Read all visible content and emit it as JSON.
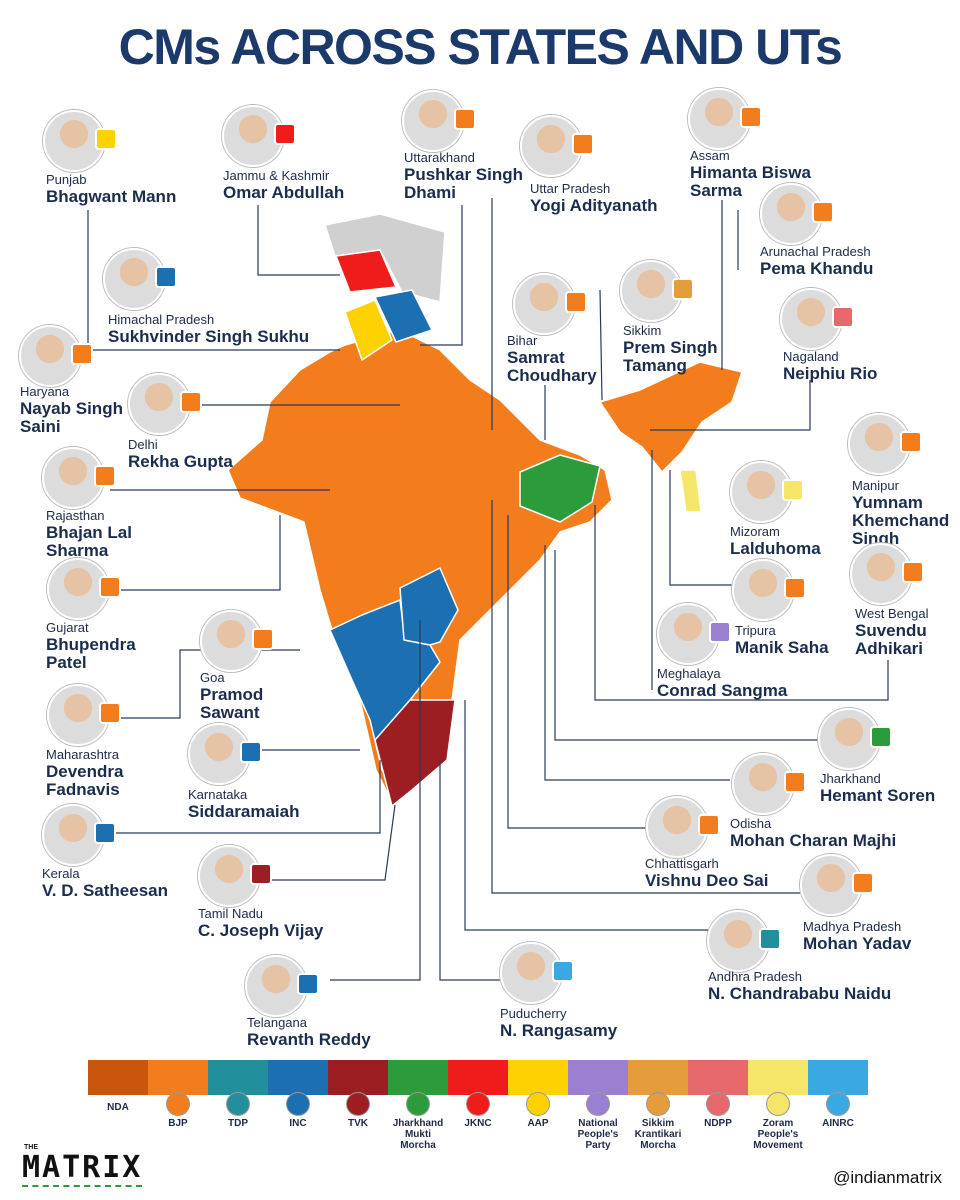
{
  "title": "CMs ACROSS STATES AND UTs",
  "cms": [
    {
      "state": "Punjab",
      "name": "Bhagwant Mann",
      "party": "AAP"
    },
    {
      "state": "Jammu & Kashmir",
      "name": "Omar Abdullah",
      "party": "JKNC"
    },
    {
      "state": "Uttarakhand",
      "name": "Pushkar Singh Dhami",
      "party": "BJP"
    },
    {
      "state": "Uttar Pradesh",
      "name": "Yogi Adityanath",
      "party": "BJP"
    },
    {
      "state": "Assam",
      "name": "Himanta Biswa Sarma",
      "party": "BJP"
    },
    {
      "state": "Arunachal Pradesh",
      "name": "Pema Khandu",
      "party": "BJP"
    },
    {
      "state": "Himachal Pradesh",
      "name": "Sukhvinder Singh Sukhu",
      "party": "INC"
    },
    {
      "state": "Bihar",
      "name": "Samrat Choudhary",
      "party": "BJP"
    },
    {
      "state": "Sikkim",
      "name": "Prem Singh Tamang",
      "party": "Sikkim Krantikari Morcha"
    },
    {
      "state": "Nagaland",
      "name": "Neiphiu Rio",
      "party": "NDPP"
    },
    {
      "state": "Haryana",
      "name": "Nayab Singh Saini",
      "party": "BJP"
    },
    {
      "state": "Delhi",
      "name": "Rekha Gupta",
      "party": "BJP"
    },
    {
      "state": "Manipur",
      "name": "Yumnam Khemchand Singh",
      "party": "BJP"
    },
    {
      "state": "Rajasthan",
      "name": "Bhajan Lal Sharma",
      "party": "BJP"
    },
    {
      "state": "Mizoram",
      "name": "Lalduhoma",
      "party": "Zoram People's Movement"
    },
    {
      "state": "West Bengal",
      "name": "Suvendu Adhikari",
      "party": "BJP"
    },
    {
      "state": "Gujarat",
      "name": "Bhupendra Patel",
      "party": "BJP"
    },
    {
      "state": "Goa",
      "name": "Pramod Sawant",
      "party": "BJP"
    },
    {
      "state": "Tripura",
      "name": "Manik Saha",
      "party": "BJP"
    },
    {
      "state": "Meghalaya",
      "name": "Conrad Sangma",
      "party": "National People's Party"
    },
    {
      "state": "Maharashtra",
      "name": "Devendra Fadnavis",
      "party": "BJP"
    },
    {
      "state": "Jharkhand",
      "name": "Hemant Soren",
      "party": "Jharkhand Mukti Morcha"
    },
    {
      "state": "Karnataka",
      "name": "Siddaramaiah",
      "party": "INC"
    },
    {
      "state": "Odisha",
      "name": "Mohan Charan Majhi",
      "party": "BJP"
    },
    {
      "state": "Kerala",
      "name": "V. D. Satheesan",
      "party": "INC"
    },
    {
      "state": "Chhattisgarh",
      "name": "Vishnu Deo Sai",
      "party": "BJP"
    },
    {
      "state": "Tamil Nadu",
      "name": "C. Joseph Vijay",
      "party": "TVK"
    },
    {
      "state": "Madhya Pradesh",
      "name": "Mohan Yadav",
      "party": "BJP"
    },
    {
      "state": "Andhra Pradesh",
      "name": "N. Chandrababu Naidu",
      "party": "TDP"
    },
    {
      "state": "Telangana",
      "name": "Revanth Reddy",
      "party": "INC"
    },
    {
      "state": "Puducherry",
      "name": "N. Rangasamy",
      "party": "AINRC"
    }
  ],
  "legend": [
    {
      "label": "NDA",
      "color": "#c9560c"
    },
    {
      "label": "BJP",
      "color": "#f37d1c"
    },
    {
      "label": "TDP",
      "color": "#21909c"
    },
    {
      "label": "INC",
      "color": "#1c6fb1"
    },
    {
      "label": "TVK",
      "color": "#9c1d22"
    },
    {
      "label": "Jharkhand Mukti Morcha",
      "color": "#2b9b3b"
    },
    {
      "label": "JKNC",
      "color": "#f01c1c"
    },
    {
      "label": "AAP",
      "color": "#fed100"
    },
    {
      "label": "National People's Party",
      "color": "#9b80d2"
    },
    {
      "label": "Sikkim Krantikari Morcha",
      "color": "#e59c3a"
    },
    {
      "label": "NDPP",
      "color": "#e8696b"
    },
    {
      "label": "Zoram People's Movement",
      "color": "#f5e569"
    },
    {
      "label": "AINRC",
      "color": "#3aa9e2"
    }
  ],
  "brand": {
    "small": "THE",
    "name": "MATRIX"
  },
  "handle": "@indianmatrix"
}
